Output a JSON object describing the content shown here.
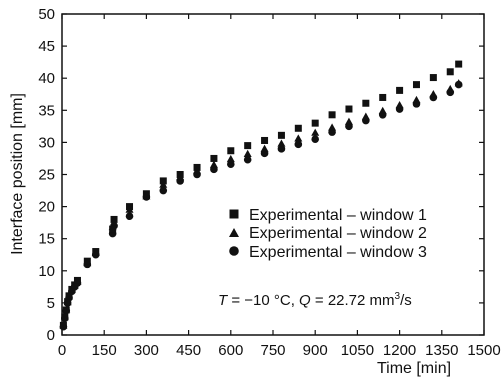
{
  "chart_data": {
    "type": "scatter",
    "title": "",
    "xlabel": "Time [min]",
    "ylabel": "Interface position [mm]",
    "xlim": [
      0,
      1500
    ],
    "ylim": [
      0,
      50
    ],
    "x_ticks": [
      0,
      150,
      300,
      450,
      600,
      750,
      900,
      1050,
      1200,
      1350,
      1500
    ],
    "y_ticks": [
      0,
      5,
      10,
      15,
      20,
      25,
      30,
      35,
      40,
      45,
      50
    ],
    "grid": false,
    "legend_position": "lower-right",
    "annotation": {
      "T_symbol": "T",
      "T_value": " = −10 °C, ",
      "Q_symbol": "Q",
      "Q_value": " = 22.72 mm",
      "Q_exponent": "3",
      "Q_unit": "/s"
    },
    "series": [
      {
        "name": "Experimental – window 1",
        "marker": "square",
        "x": [
          5,
          10,
          15,
          20,
          25,
          35,
          45,
          55,
          90,
          120,
          180,
          185,
          240,
          300,
          360,
          420,
          480,
          540,
          600,
          660,
          720,
          780,
          840,
          900,
          960,
          1020,
          1080,
          1140,
          1200,
          1260,
          1320,
          1380,
          1410
        ],
        "y": [
          1.5,
          2.8,
          3.9,
          5.2,
          6.1,
          7.1,
          7.8,
          8.5,
          11.5,
          13.0,
          16.5,
          18.0,
          20.0,
          22.0,
          24.0,
          25.0,
          26.1,
          27.5,
          28.7,
          29.5,
          30.3,
          31.1,
          32.2,
          33.0,
          34.3,
          35.2,
          36.1,
          37.0,
          38.1,
          39.0,
          40.1,
          41.0,
          42.2
        ]
      },
      {
        "name": "Experimental – window 2",
        "marker": "triangle",
        "x": [
          5,
          10,
          15,
          20,
          25,
          35,
          45,
          55,
          90,
          120,
          180,
          185,
          240,
          300,
          360,
          420,
          480,
          540,
          600,
          660,
          720,
          780,
          840,
          900,
          960,
          1020,
          1080,
          1140,
          1200,
          1260,
          1320,
          1380,
          1410
        ],
        "y": [
          1.5,
          2.9,
          4.0,
          5.1,
          6.0,
          7.0,
          7.7,
          8.3,
          11.2,
          12.8,
          16.8,
          17.4,
          19.5,
          21.6,
          23.4,
          24.6,
          25.6,
          26.5,
          27.4,
          28.2,
          29.0,
          29.8,
          30.6,
          31.5,
          32.3,
          33.2,
          34.0,
          34.9,
          35.8,
          36.6,
          37.5,
          38.3,
          39.2
        ]
      },
      {
        "name": "Experimental – window 3",
        "marker": "circle",
        "x": [
          5,
          10,
          15,
          20,
          25,
          35,
          45,
          55,
          90,
          120,
          180,
          185,
          240,
          300,
          360,
          420,
          480,
          540,
          600,
          660,
          720,
          780,
          840,
          900,
          960,
          1020,
          1080,
          1140,
          1200,
          1260,
          1320,
          1380,
          1410
        ],
        "y": [
          1.3,
          2.6,
          3.8,
          5.0,
          5.8,
          6.8,
          7.5,
          8.1,
          11.0,
          12.5,
          15.8,
          17.0,
          18.5,
          21.5,
          22.5,
          24.0,
          25.0,
          25.8,
          26.6,
          27.3,
          28.3,
          29.0,
          29.7,
          30.5,
          31.6,
          32.5,
          33.4,
          34.3,
          35.2,
          36.0,
          37.0,
          37.8,
          39.0
        ]
      }
    ]
  }
}
